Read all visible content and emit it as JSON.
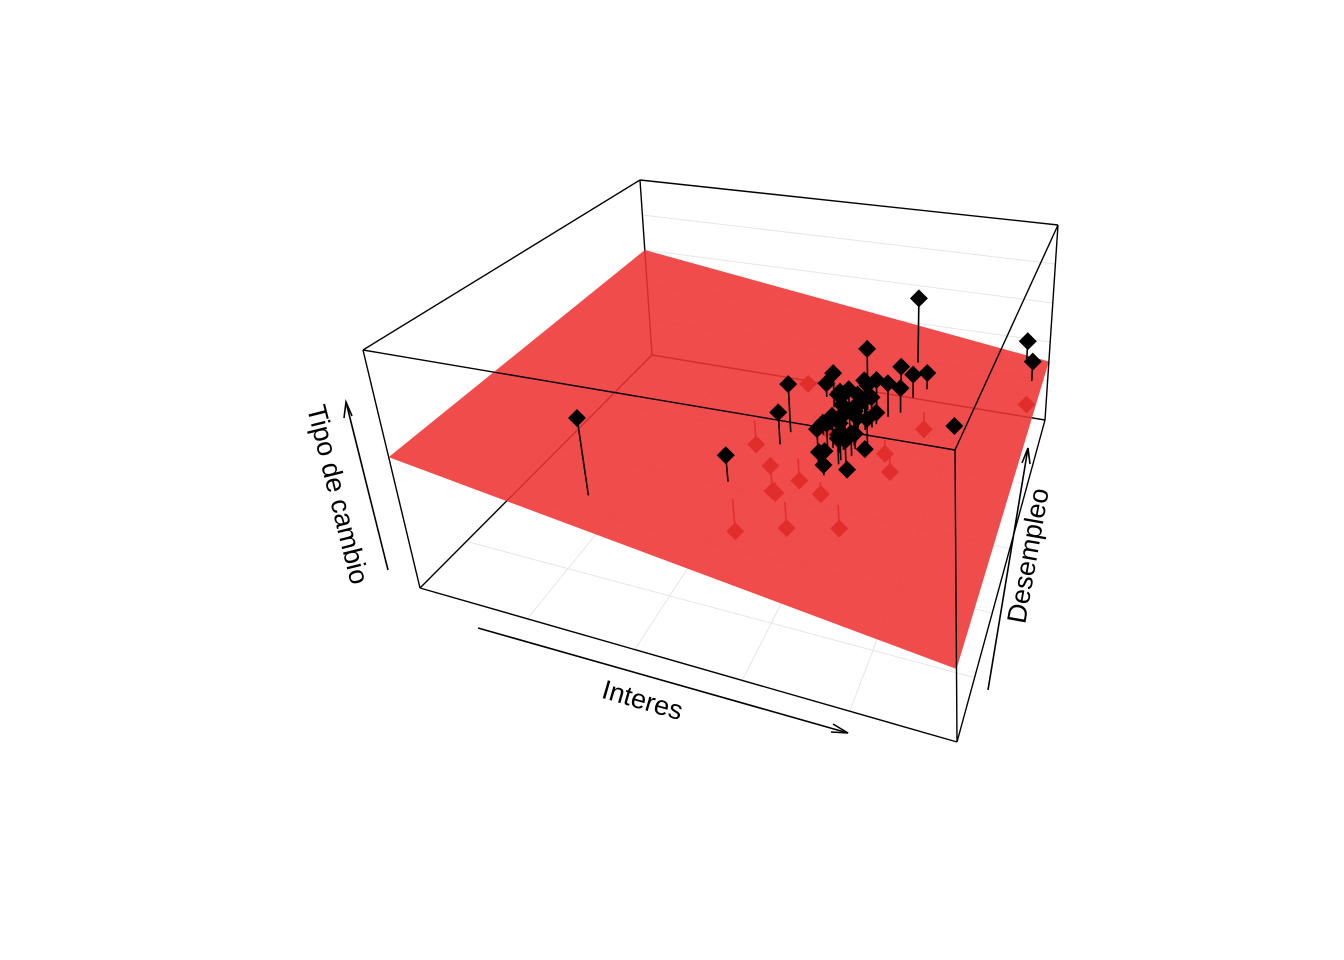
{
  "chart_data": {
    "type": "scatter",
    "subtype": "3d-scatter-with-regression-plane",
    "title": "",
    "xlabel": "Interes",
    "ylabel": "Desempleo",
    "zlabel": "Tipo de cambio",
    "grid": true,
    "legend": "none",
    "colors": {
      "above_plane_point": "#000000",
      "below_plane_point": "#8b0000",
      "plane": "#ee3333",
      "drop_line": "#000000",
      "box": "#000000",
      "grid": "#e6e6e6"
    },
    "point_shape": "diamond",
    "points": [
      {
        "x": -0.38,
        "y": -0.8,
        "z": 0.55
      },
      {
        "x": 0.43,
        "y": 0.75,
        "z": 0.4
      },
      {
        "x": 0.1,
        "y": 0.05,
        "z": 0.25
      },
      {
        "x": 0.09,
        "y": -0.05,
        "z": 0.1
      },
      {
        "x": 0.3,
        "y": 0.2,
        "z": 0.12
      },
      {
        "x": 0.32,
        "y": 0.06,
        "z": 0.05
      },
      {
        "x": 0.28,
        "y": 0.1,
        "z": -0.05
      },
      {
        "x": 0.33,
        "y": -0.05,
        "z": -0.03
      },
      {
        "x": 0.35,
        "y": 0.15,
        "z": 0.04
      },
      {
        "x": 0.38,
        "y": 0.25,
        "z": 0.02
      },
      {
        "x": 0.31,
        "y": 0.02,
        "z": -0.08
      },
      {
        "x": 0.29,
        "y": -0.1,
        "z": -0.1
      },
      {
        "x": 0.36,
        "y": 0.08,
        "z": -0.12
      },
      {
        "x": 0.4,
        "y": 0.12,
        "z": -0.02
      },
      {
        "x": 0.27,
        "y": 0.0,
        "z": 0.02
      },
      {
        "x": 0.34,
        "y": 0.3,
        "z": -0.06
      },
      {
        "x": 0.37,
        "y": -0.08,
        "z": 0.0
      },
      {
        "x": 0.42,
        "y": 0.35,
        "z": 0.05
      },
      {
        "x": 0.46,
        "y": 0.4,
        "z": -0.04
      },
      {
        "x": 0.39,
        "y": 0.28,
        "z": -0.15
      },
      {
        "x": 0.25,
        "y": -0.05,
        "z": -0.18
      },
      {
        "x": 0.48,
        "y": 0.52,
        "z": -0.05
      },
      {
        "x": 0.52,
        "y": 0.6,
        "z": -0.12
      },
      {
        "x": 0.35,
        "y": 0.1,
        "z": 0.08
      },
      {
        "x": 0.3,
        "y": -0.15,
        "z": -0.16
      },
      {
        "x": 0.33,
        "y": 0.22,
        "z": 0.06
      },
      {
        "x": 0.26,
        "y": 0.18,
        "z": 0.08
      },
      {
        "x": 0.38,
        "y": 0.32,
        "z": 0.1
      },
      {
        "x": 0.22,
        "y": 0.1,
        "z": -0.1
      },
      {
        "x": 0.9,
        "y": 0.95,
        "z": -0.15
      },
      {
        "x": 0.95,
        "y": 0.85,
        "z": -0.2
      },
      {
        "x": 0.2,
        "y": 0.2,
        "z": -0.28
      },
      {
        "x": 0.15,
        "y": -0.3,
        "z": -0.3
      },
      {
        "x": 0.3,
        "y": -0.2,
        "z": -0.35
      },
      {
        "x": 0.05,
        "y": -0.5,
        "z": -0.45
      },
      {
        "x": 0.22,
        "y": -0.4,
        "z": -0.45
      },
      {
        "x": 0.4,
        "y": -0.3,
        "z": -0.48
      },
      {
        "x": 0.35,
        "y": 0.4,
        "z": -0.3
      },
      {
        "x": 0.25,
        "y": 0.15,
        "z": -0.25
      },
      {
        "x": 0.12,
        "y": -0.25,
        "z": -0.35
      },
      {
        "x": 0.32,
        "y": 0.05,
        "z": 0.15
      },
      {
        "x": 0.29,
        "y": 0.12,
        "z": 0.18
      },
      {
        "x": 0.36,
        "y": 0.22,
        "z": 0.2
      },
      {
        "x": 0.38,
        "y": -0.1,
        "z": -0.22
      },
      {
        "x": 0.27,
        "y": -0.12,
        "z": 0.1
      },
      {
        "x": 0.3,
        "y": 0.3,
        "z": -0.14
      },
      {
        "x": 0.34,
        "y": 0.18,
        "z": -0.1
      },
      {
        "x": 0.26,
        "y": 0.26,
        "z": 0.0
      },
      {
        "x": 0.41,
        "y": 0.05,
        "z": -0.2
      },
      {
        "x": 0.33,
        "y": 0.35,
        "z": 0.0
      },
      {
        "x": 0.31,
        "y": 0.08,
        "z": 0.02
      },
      {
        "x": 0.36,
        "y": 0.03,
        "z": -0.06
      },
      {
        "x": 0.3,
        "y": 0.14,
        "z": -0.02
      },
      {
        "x": 0.28,
        "y": 0.04,
        "z": 0.05
      },
      {
        "x": 0.35,
        "y": 0.12,
        "z": 0.03
      },
      {
        "x": 0.33,
        "y": -0.02,
        "z": 0.07
      },
      {
        "x": -0.05,
        "y": 0.05,
        "z": -0.35
      },
      {
        "x": 0.05,
        "y": 0.4,
        "z": -0.15
      },
      {
        "x": 0.4,
        "y": 0.6,
        "z": -0.1
      },
      {
        "x": 0.55,
        "y": 0.45,
        "z": -0.45
      },
      {
        "x": 0.7,
        "y": 0.4,
        "z": -0.3
      },
      {
        "x": 0.18,
        "y": -0.1,
        "z": -0.4
      },
      {
        "x": 0.45,
        "y": 0.2,
        "z": -0.4
      },
      {
        "x": 0.5,
        "y": 0.1,
        "z": -0.42
      },
      {
        "x": 0.1,
        "y": -0.2,
        "z": -0.2
      },
      {
        "x": 0.0,
        "y": -0.4,
        "z": 0.05
      },
      {
        "x": 0.28,
        "y": 0.5,
        "z": 0.15
      },
      {
        "x": 0.2,
        "y": 0.3,
        "z": 0.12
      },
      {
        "x": 0.95,
        "y": 0.75,
        "z": -0.48
      },
      {
        "x": 0.15,
        "y": 0.35,
        "z": -0.05
      }
    ]
  }
}
